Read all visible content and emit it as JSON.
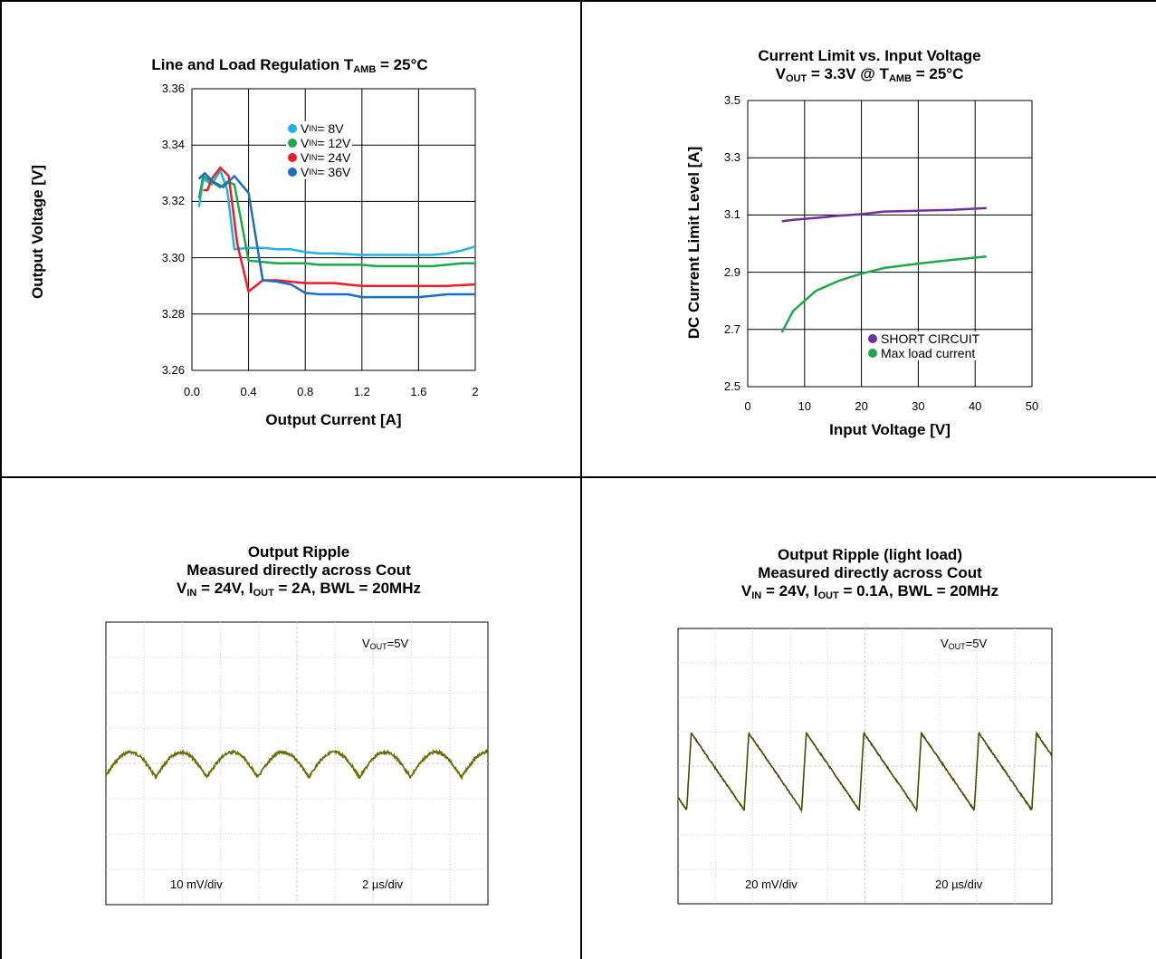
{
  "chart_data": [
    {
      "type": "line",
      "title": "Line and Load Regulation T",
      "title_sub": "AMB",
      "title_suffix": " = 25°C",
      "xlabel": "Output Current [A]",
      "ylabel": "Output Voltage [V]",
      "xlim": [
        0,
        2
      ],
      "ylim": [
        3.26,
        3.36
      ],
      "x_ticks": [
        "0.0",
        "0.4",
        "0.8",
        "1.2",
        "1.6",
        "2"
      ],
      "y_ticks": [
        "3.26",
        "3.28",
        "3.30",
        "3.32",
        "3.34",
        "3.36"
      ],
      "grid": true,
      "legend_position": "top-center",
      "series": [
        {
          "name_main": "V",
          "name_sub": "IN",
          "name_tail": " = 8V",
          "color": "#22b0e8",
          "x": [
            0.05,
            0.08,
            0.14,
            0.2,
            0.25,
            0.3,
            0.4,
            0.5,
            0.6,
            0.7,
            0.8,
            0.9,
            1.0,
            1.2,
            1.4,
            1.6,
            1.7,
            1.8,
            1.9,
            2.0
          ],
          "y": [
            3.318,
            3.328,
            3.326,
            3.331,
            3.324,
            3.303,
            3.3035,
            3.3035,
            3.303,
            3.303,
            3.302,
            3.3015,
            3.3015,
            3.301,
            3.301,
            3.301,
            3.301,
            3.3015,
            3.3025,
            3.304
          ]
        },
        {
          "name_main": "V",
          "name_sub": "IN",
          "name_tail": " = 12V",
          "color": "#1ea84a",
          "x": [
            0.05,
            0.08,
            0.14,
            0.2,
            0.25,
            0.3,
            0.4,
            0.5,
            0.6,
            0.7,
            0.8,
            0.9,
            1.0,
            1.1,
            1.2,
            1.3,
            1.4,
            1.5,
            1.6,
            1.7,
            1.8,
            1.9,
            2.0
          ],
          "y": [
            3.321,
            3.329,
            3.327,
            3.325,
            3.327,
            3.326,
            3.299,
            3.2985,
            3.298,
            3.298,
            3.298,
            3.2975,
            3.2975,
            3.2975,
            3.2975,
            3.297,
            3.297,
            3.297,
            3.297,
            3.297,
            3.2975,
            3.298,
            3.298
          ]
        },
        {
          "name_main": "V",
          "name_sub": "IN",
          "name_tail": " = 24V",
          "color": "#ee1c24",
          "x": [
            0.08,
            0.11,
            0.14,
            0.2,
            0.26,
            0.32,
            0.4,
            0.5,
            0.6,
            0.8,
            1.0,
            1.2,
            1.4,
            1.6,
            1.8,
            2.0
          ],
          "y": [
            3.324,
            3.324,
            3.328,
            3.332,
            3.329,
            3.305,
            3.288,
            3.292,
            3.292,
            3.291,
            3.291,
            3.29,
            3.29,
            3.29,
            3.29,
            3.2905
          ]
        },
        {
          "name_main": "V",
          "name_sub": "IN",
          "name_tail": " = 36V",
          "color": "#1a6fc4",
          "x": [
            0.05,
            0.09,
            0.15,
            0.22,
            0.3,
            0.4,
            0.5,
            0.6,
            0.7,
            0.8,
            0.9,
            1.0,
            1.1,
            1.2,
            1.4,
            1.6,
            1.7,
            1.8,
            2.0
          ],
          "y": [
            3.328,
            3.33,
            3.327,
            3.325,
            3.329,
            3.323,
            3.292,
            3.2915,
            3.2905,
            3.2875,
            3.287,
            3.287,
            3.287,
            3.286,
            3.286,
            3.286,
            3.2865,
            3.287,
            3.287
          ]
        }
      ]
    },
    {
      "type": "line",
      "title_line1": "Current Limit vs. Input Voltage",
      "title_line2_main": "V",
      "title_line2_sub1": "OUT",
      "title_line2_mid": " = 3.3V @ T",
      "title_line2_sub2": "AMB",
      "title_line2_tail": " = 25°C",
      "xlabel": "Input Voltage [V]",
      "ylabel": "DC Current Limit Level [A]",
      "xlim": [
        0,
        50
      ],
      "ylim": [
        2.5,
        3.5
      ],
      "x_ticks": [
        "0",
        "10",
        "20",
        "30",
        "40",
        "50"
      ],
      "y_ticks": [
        "2.5",
        "2.7",
        "2.9",
        "3.1",
        "3.3",
        "3.5"
      ],
      "grid": true,
      "legend_position": "bottom-right",
      "series": [
        {
          "name": "SHORT CIRCUIT",
          "color": "#7030a0",
          "x": [
            6,
            8,
            12,
            16,
            20,
            24,
            30,
            36,
            42
          ],
          "y": [
            3.078,
            3.083,
            3.09,
            3.097,
            3.103,
            3.112,
            3.115,
            3.118,
            3.124
          ]
        },
        {
          "name": "Max load current",
          "color": "#1ea84a",
          "x": [
            6,
            8,
            12,
            16,
            20,
            24,
            30,
            36,
            42
          ],
          "y": [
            2.69,
            2.765,
            2.835,
            2.87,
            2.895,
            2.915,
            2.93,
            2.943,
            2.955
          ]
        }
      ]
    },
    {
      "type": "line",
      "title_line1": "Output Ripple",
      "title_line2": "Measured directly across Cout",
      "title_line3_a": "V",
      "title_line3_sub1": "IN",
      "title_line3_b": " = 24V, I",
      "title_line3_sub2": "OUT",
      "title_line3_c": " = 2A, BWL = 20MHz",
      "label_vout_main": "V",
      "label_vout_sub": "OUT",
      "label_vout_tail": "=5V",
      "label_volt_div": "10 mV/div",
      "label_time_div": "2 µs/div",
      "grid": true,
      "periods": 7.5,
      "waveform": "arc",
      "trace_color": "#6b6b00"
    },
    {
      "type": "line",
      "title_line1": "Output Ripple (light load)",
      "title_line2": "Measured directly across Cout",
      "title_line3_a": "V",
      "title_line3_sub1": "IN",
      "title_line3_b": " = 24V, I",
      "title_line3_sub2": "OUT",
      "title_line3_c": " = 0.1A, BWL = 20MHz",
      "label_vout_main": "V",
      "label_vout_sub": "OUT",
      "label_vout_tail": "=5V",
      "label_volt_div": "20 mV/div",
      "label_time_div": "20 µs/div",
      "grid": true,
      "periods": 6.5,
      "waveform": "sawtooth",
      "trace_color": "#4a4a00"
    }
  ]
}
